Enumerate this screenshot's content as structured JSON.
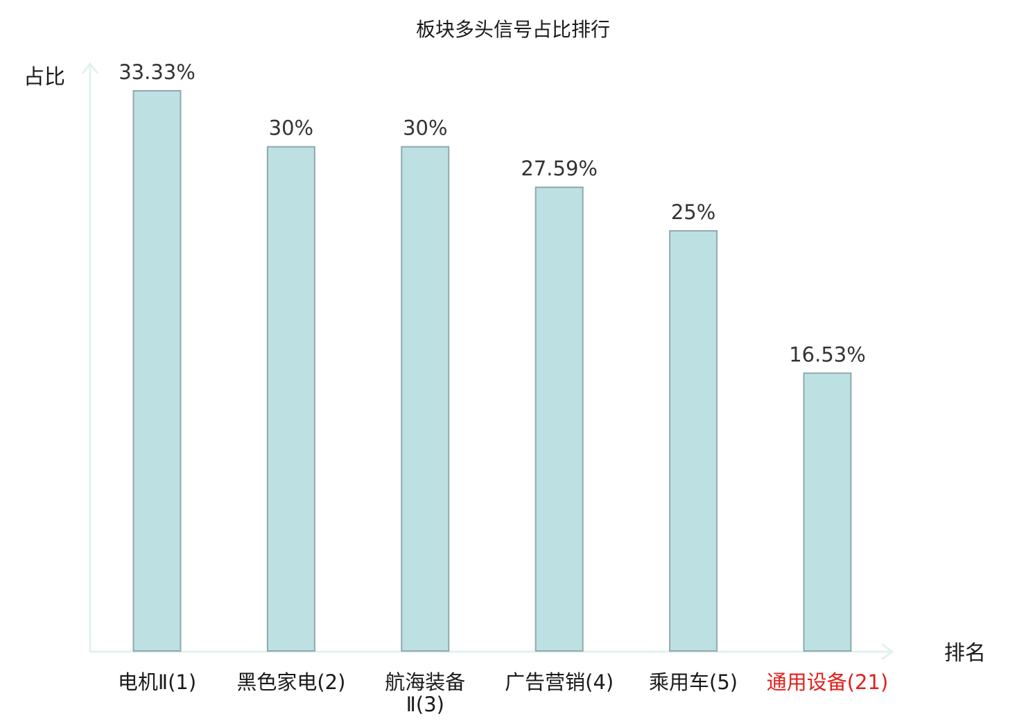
{
  "chart_data": {
    "type": "bar",
    "title": "板块多头信号占比排行",
    "ylabel": "占比",
    "xlabel": "排名",
    "categories": [
      {
        "lines": [
          "电机Ⅱ(1)"
        ],
        "highlight": false
      },
      {
        "lines": [
          "黑色家电(2)"
        ],
        "highlight": false
      },
      {
        "lines": [
          "航海装备",
          "Ⅱ(3)"
        ],
        "highlight": false
      },
      {
        "lines": [
          "广告营销(4)"
        ],
        "highlight": false
      },
      {
        "lines": [
          "乘用车(5)"
        ],
        "highlight": false
      },
      {
        "lines": [
          "通用设备(21)"
        ],
        "highlight": true
      }
    ],
    "values": [
      33.33,
      30,
      30,
      27.59,
      25,
      16.53
    ],
    "value_labels": [
      "33.33%",
      "30%",
      "30%",
      "27.59%",
      "25%",
      "16.53%"
    ],
    "ylim": [
      0,
      33.33
    ],
    "grid": false,
    "colors": {
      "bar_fill": "#bde0e3",
      "bar_stroke": "#8fa9ab",
      "axis": "#e0f2ef",
      "highlight_label": "#e0201c",
      "label": "#1a1a1a"
    }
  }
}
